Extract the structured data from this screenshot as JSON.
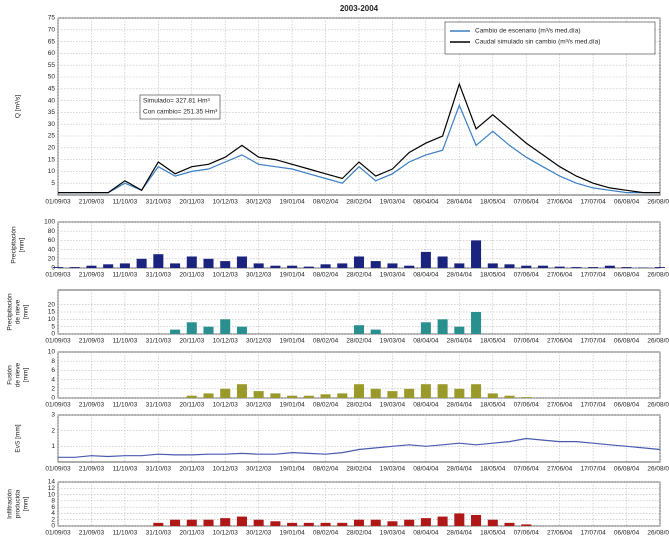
{
  "chart_data": [
    {
      "type": "line",
      "title": "2003-2004",
      "ylabel": [
        "Q [m³/s]"
      ],
      "categories": [
        "01/09/03",
        null,
        "21/09/03",
        null,
        "11/10/03",
        null,
        "31/10/03",
        null,
        "20/11/03",
        null,
        "10/12/03",
        null,
        "30/12/03",
        null,
        "19/01/04",
        null,
        "08/02/04",
        null,
        "28/02/04",
        null,
        "19/03/04",
        null,
        "08/04/04",
        null,
        "28/04/04",
        null,
        "18/05/04",
        null,
        "07/06/04",
        null,
        "27/06/04",
        null,
        "17/07/04",
        null,
        "06/08/04",
        null,
        "26/08/04"
      ],
      "series": [
        {
          "name": "Cambio de escenario (m³/s med.día)",
          "color": "#3a7fc4",
          "values": [
            1,
            1,
            1,
            1,
            5,
            2,
            12,
            8,
            10,
            11,
            14,
            17,
            13,
            12,
            11,
            9,
            7,
            5,
            12,
            6,
            9,
            14,
            17,
            19,
            38,
            21,
            27,
            21,
            16,
            12,
            8,
            5,
            3,
            2,
            1,
            1,
            1
          ]
        },
        {
          "name": "Caudal simulado sin cambio (m³/s med.día)",
          "color": "#000000",
          "values": [
            1,
            1,
            1,
            1,
            6,
            2,
            14,
            9,
            12,
            13,
            16,
            21,
            16,
            15,
            13,
            11,
            9,
            7,
            14,
            8,
            11,
            18,
            22,
            25,
            47,
            28,
            34,
            28,
            22,
            17,
            12,
            8,
            5,
            3,
            2,
            1,
            1
          ]
        }
      ],
      "annotations": [
        "Simulado= 327.81 Hm³",
        "Con cambio= 251.35 Hm³"
      ],
      "legend": "upper right",
      "ylim": [
        0,
        75
      ],
      "yticks": [
        5,
        10,
        15,
        20,
        25,
        30,
        35,
        40,
        45,
        50,
        55,
        60,
        65,
        70,
        75
      ],
      "grid": true
    },
    {
      "type": "bar",
      "ylabel": [
        "Precipitación",
        "[mm]"
      ],
      "categories": [
        "01/09/03",
        null,
        "21/09/03",
        null,
        "11/10/03",
        null,
        "31/10/03",
        null,
        "20/11/03",
        null,
        "10/12/03",
        null,
        "30/12/03",
        null,
        "19/01/04",
        null,
        "08/02/04",
        null,
        "28/02/04",
        null,
        "19/03/04",
        null,
        "08/04/04",
        null,
        "28/04/04",
        null,
        "18/05/04",
        null,
        "07/06/04",
        null,
        "27/06/04",
        null,
        "17/07/04",
        null,
        "06/08/04",
        null,
        "26/08/04"
      ],
      "series": [
        {
          "color": "#1a237e",
          "values": [
            2,
            2,
            5,
            8,
            10,
            20,
            30,
            10,
            25,
            20,
            15,
            25,
            10,
            5,
            5,
            3,
            8,
            10,
            25,
            15,
            10,
            5,
            35,
            25,
            10,
            60,
            10,
            8,
            5,
            5,
            3,
            2,
            2,
            5,
            2,
            1,
            2
          ]
        }
      ],
      "ylim": [
        0,
        100
      ],
      "yticks": [
        0,
        20,
        40,
        60,
        80,
        100
      ],
      "grid": true
    },
    {
      "type": "bar",
      "ylabel": [
        "Precipitación",
        "de nieve",
        "[mm]"
      ],
      "categories": [
        "01/09/03",
        null,
        "21/09/03",
        null,
        "11/10/03",
        null,
        "31/10/03",
        null,
        "20/11/03",
        null,
        "10/12/03",
        null,
        "30/12/03",
        null,
        "19/01/04",
        null,
        "08/02/04",
        null,
        "28/02/04",
        null,
        "19/03/04",
        null,
        "08/04/04",
        null,
        "28/04/04",
        null,
        "18/05/04",
        null,
        "07/06/04",
        null,
        "27/06/04",
        null,
        "17/07/04",
        null,
        "06/08/04",
        null,
        "26/08/04"
      ],
      "series": [
        {
          "color": "#2a8f8f",
          "values": [
            0,
            0,
            0,
            0,
            0,
            0,
            0,
            3,
            8,
            5,
            10,
            5,
            0,
            0,
            0,
            0,
            0,
            0,
            6,
            3,
            0,
            0,
            8,
            10,
            5,
            15,
            0,
            0,
            0,
            0,
            0,
            0,
            0,
            0,
            0,
            0,
            0
          ]
        }
      ],
      "ylim": [
        0,
        30
      ],
      "yticks": [
        0,
        5,
        10,
        15,
        20
      ],
      "grid": true
    },
    {
      "type": "bar",
      "ylabel": [
        "Fusión",
        "de nieve",
        "[mm]"
      ],
      "categories": [
        "01/09/03",
        null,
        "21/09/03",
        null,
        "11/10/03",
        null,
        "31/10/03",
        null,
        "20/11/03",
        null,
        "10/12/03",
        null,
        "30/12/03",
        null,
        "19/01/04",
        null,
        "08/02/04",
        null,
        "28/02/04",
        null,
        "19/03/04",
        null,
        "08/04/04",
        null,
        "28/04/04",
        null,
        "18/05/04",
        null,
        "07/06/04",
        null,
        "27/06/04",
        null,
        "17/07/04",
        null,
        "06/08/04",
        null,
        "26/08/04"
      ],
      "series": [
        {
          "color": "#9a9a2a",
          "values": [
            0,
            0,
            0,
            0,
            0,
            0,
            0,
            0,
            0.5,
            1,
            2,
            3,
            1.5,
            1,
            0.5,
            0.5,
            0.8,
            1,
            3,
            2,
            1.5,
            2,
            3,
            3,
            2,
            3,
            1,
            0.5,
            0.2,
            0,
            0,
            0,
            0,
            0,
            0,
            0,
            0
          ]
        }
      ],
      "ylim": [
        0,
        10
      ],
      "yticks": [
        0,
        2,
        4,
        6,
        8,
        10
      ],
      "grid": true
    },
    {
      "type": "line",
      "ylabel": [
        "EvS [mm]"
      ],
      "categories": [
        "01/09/03",
        null,
        "21/09/03",
        null,
        "11/10/03",
        null,
        "31/10/03",
        null,
        "20/11/03",
        null,
        "10/12/03",
        null,
        "30/12/03",
        null,
        "19/01/04",
        null,
        "08/02/04",
        null,
        "28/02/04",
        null,
        "19/03/04",
        null,
        "08/04/04",
        null,
        "28/04/04",
        null,
        "18/05/04",
        null,
        "07/06/04",
        null,
        "27/06/04",
        null,
        "17/07/04",
        null,
        "06/08/04",
        null,
        "26/08/04"
      ],
      "series": [
        {
          "color": "#4a5ab0",
          "values": [
            0.3,
            0.3,
            0.4,
            0.35,
            0.4,
            0.4,
            0.5,
            0.45,
            0.45,
            0.5,
            0.5,
            0.55,
            0.5,
            0.5,
            0.6,
            0.55,
            0.5,
            0.6,
            0.8,
            0.9,
            1.0,
            1.1,
            1.0,
            1.1,
            1.2,
            1.1,
            1.2,
            1.3,
            1.5,
            1.4,
            1.3,
            1.3,
            1.2,
            1.1,
            1.0,
            0.9,
            0.8
          ]
        }
      ],
      "ylim": [
        0,
        3
      ],
      "yticks": [
        1,
        2,
        3
      ],
      "grid": true
    },
    {
      "type": "bar",
      "ylabel": [
        "Infiltración",
        "producida",
        "[mm]"
      ],
      "categories": [
        "01/09/03",
        null,
        "21/09/03",
        null,
        "11/10/03",
        null,
        "31/10/03",
        null,
        "20/11/03",
        null,
        "10/12/03",
        null,
        "30/12/03",
        null,
        "19/01/04",
        null,
        "08/02/04",
        null,
        "28/02/04",
        null,
        "19/03/04",
        null,
        "08/04/04",
        null,
        "28/04/04",
        null,
        "18/05/04",
        null,
        "07/06/04",
        null,
        "27/06/04",
        null,
        "17/07/04",
        null,
        "06/08/04",
        null,
        "26/08/04"
      ],
      "series": [
        {
          "color": "#b01818",
          "values": [
            0,
            0,
            0,
            0,
            0,
            0,
            1,
            2,
            2,
            2,
            2.5,
            3,
            2,
            1.5,
            1,
            1,
            1,
            1,
            2,
            2,
            1.5,
            2,
            2.5,
            3,
            4,
            3.5,
            2,
            1,
            0.5,
            0,
            0,
            0,
            0,
            0,
            0,
            0,
            0
          ]
        }
      ],
      "ylim": [
        0,
        14
      ],
      "yticks": [
        0,
        2,
        4,
        6,
        8,
        10,
        12,
        14
      ],
      "grid": true
    }
  ]
}
